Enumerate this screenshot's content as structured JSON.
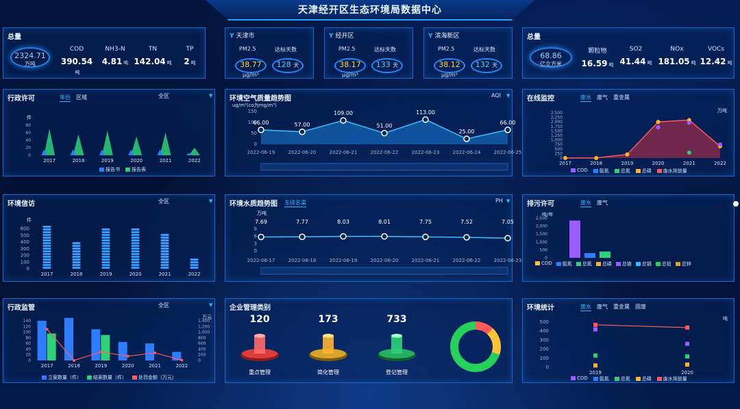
{
  "title": "天津经开区生态环境局数据中心",
  "totals_left": {
    "label": "总量",
    "value": "2324.71",
    "unit": "万吨",
    "items": [
      {
        "label": "COD",
        "value": "390.54",
        "unit": "吨"
      },
      {
        "label": "NH3-N",
        "value": "4.81",
        "unit": "吨"
      },
      {
        "label": "TN",
        "value": "142.04",
        "unit": "吨"
      },
      {
        "label": "TP",
        "value": "2",
        "unit": "吨"
      }
    ]
  },
  "cities": [
    {
      "name": "天津市",
      "pm_label": "PM2.5",
      "days_label": "达标天数",
      "pm": "38.77",
      "days": "128",
      "days_unit": "天",
      "unit": "μg/m³"
    },
    {
      "name": "经开区",
      "pm_label": "PM2.5",
      "days_label": "达标天数",
      "pm": "38.17",
      "days": "133",
      "days_unit": "天",
      "unit": "μg/m³"
    },
    {
      "name": "滨海新区",
      "pm_label": "PM2.5",
      "days_label": "达标天数",
      "pm": "38.12",
      "days": "132",
      "days_unit": "天",
      "unit": "μg/m³"
    }
  ],
  "totals_right": {
    "label": "总量",
    "value": "68.86",
    "unit": "亿立方米",
    "items": [
      {
        "label": "颗粒物",
        "value": "16.59",
        "unit": "吨"
      },
      {
        "label": "SO2",
        "value": "41.44",
        "unit": "吨"
      },
      {
        "label": "NOx",
        "value": "181.05",
        "unit": "吨"
      },
      {
        "label": "VOCs",
        "value": "12.42",
        "unit": "吨"
      }
    ]
  },
  "panels": {
    "admin_permit": {
      "title": "行政许可",
      "tabs": [
        "年份",
        "区域"
      ],
      "dropdown": "全区",
      "unit": "件",
      "legend": [
        "报告书",
        "报告表"
      ]
    },
    "air_trend": {
      "title": "环境空气质量趋势图",
      "unit": "ug/m³(co为mg/m³)",
      "dropdown": "AQI"
    },
    "online_monitor": {
      "title": "在线监控",
      "tabs": [
        "废水",
        "废气",
        "重金属"
      ],
      "unit": "万吨",
      "legend": [
        "COD",
        "氨氮",
        "总氮",
        "总磷",
        "废水排放量"
      ]
    },
    "complaints": {
      "title": "环境信访",
      "dropdown": "全区",
      "unit": "件"
    },
    "water_trend": {
      "title": "环境水质趋势图",
      "tab": "东排名渠",
      "dropdown": "PH",
      "unit": "万吨"
    },
    "discharge_permit": {
      "title": "排污许可",
      "tabs": [
        "废水",
        "废气"
      ],
      "unit": "吨/年",
      "legend": [
        "COD",
        "氨氮",
        "总氮",
        "总磷",
        "总铬",
        "总镉",
        "总铅",
        "总锌"
      ]
    },
    "admin_supervision": {
      "title": "行政监管",
      "dropdown": "全区",
      "unit_right": "万元",
      "legend": [
        "立案数量（件）",
        "结案数量（件）",
        "处罚金额（万元）"
      ]
    },
    "enterprise": {
      "title": "企业管理类别",
      "items": [
        {
          "label": "重点管理",
          "count": "120"
        },
        {
          "label": "简化管理",
          "count": "173"
        },
        {
          "label": "登记管理",
          "count": "733"
        }
      ]
    },
    "env_stats": {
      "title": "环境统计",
      "tabs": [
        "废水",
        "废气",
        "重金属",
        "固废"
      ],
      "unit": "吨",
      "legend": [
        "COD",
        "氨氮",
        "总氮",
        "总磷",
        "废水排放量"
      ]
    }
  },
  "colors": {
    "accent": "#2fb8ff",
    "panel_border": "#1f67c9",
    "bg": "#021032"
  },
  "chart_data": [
    {
      "type": "area",
      "title": "行政许可",
      "categories": [
        "2017",
        "2018",
        "2019",
        "2020",
        "2021",
        "2022"
      ],
      "series": [
        {
          "name": "报告书",
          "values": [
            5,
            5,
            5,
            5,
            5,
            2
          ]
        },
        {
          "name": "报告表",
          "values": [
            70,
            55,
            65,
            50,
            60,
            20
          ]
        }
      ],
      "ylim": [
        0,
        90
      ]
    },
    {
      "type": "line",
      "title": "环境空气质量趋势图",
      "categories": [
        "2022-06-19",
        "2022-06-20",
        "2022-06-21",
        "2022-06-22",
        "2022-06-23",
        "2022-06-24",
        "2022-06-25"
      ],
      "series": [
        {
          "name": "AQI",
          "values": [
            66.0,
            57.0,
            109.0,
            51.0,
            113.0,
            25.0,
            66.0
          ]
        }
      ],
      "yticks": [
        "0",
        "50",
        "100",
        "150"
      ],
      "ylim": [
        0,
        150
      ]
    },
    {
      "type": "area",
      "title": "在线监控",
      "categories": [
        "2017",
        "2018",
        "2019",
        "2020",
        "2021",
        "2022"
      ],
      "series": [
        {
          "name": "废水排放量",
          "values": [
            0,
            0,
            200,
            2000,
            2100,
            650
          ]
        },
        {
          "name": "COD",
          "values": [
            0,
            0,
            0,
            1700,
            1950,
            750
          ]
        },
        {
          "name": "总氮",
          "values": [
            0,
            0,
            0,
            0,
            300,
            0
          ]
        }
      ],
      "yticks": [
        "0",
        "250",
        "500",
        "750",
        "1,000",
        "1,250",
        "1,500",
        "1,750",
        "2,000",
        "2,250",
        "2,500"
      ],
      "ylim": [
        0,
        2500
      ]
    },
    {
      "type": "bar",
      "title": "环境信访",
      "categories": [
        "2017",
        "2018",
        "2019",
        "2020",
        "2021",
        "2022"
      ],
      "series": [
        {
          "name": "",
          "values": [
            700,
            430,
            640,
            660,
            580,
            170
          ]
        }
      ],
      "yticks": [
        "0",
        "100",
        "200",
        "300",
        "400",
        "500",
        "600"
      ],
      "ylim": [
        0,
        750
      ]
    },
    {
      "type": "line",
      "title": "环境水质趋势图",
      "categories": [
        "2022-06-17",
        "2022-06-18",
        "2022-06-19",
        "2022-06-20",
        "2022-06-21",
        "2022-06-22",
        "2022-06-23"
      ],
      "series": [
        {
          "name": "PH",
          "values": [
            7.69,
            7.77,
            8.03,
            8.01,
            7.75,
            7.52,
            7.05
          ]
        }
      ],
      "yticks": [
        "0",
        "3",
        "6",
        "9"
      ],
      "ylim": [
        0,
        12
      ]
    },
    {
      "type": "bar",
      "title": "排污许可",
      "categories": [
        "COD",
        "氨氮",
        "总氮"
      ],
      "series": [
        {
          "name": "",
          "values": [
            2350,
            300,
            400
          ]
        }
      ],
      "yticks": [
        "0",
        "500",
        "1,000",
        "1,500",
        "2,000",
        "2,500"
      ],
      "ylim": [
        0,
        2500
      ]
    },
    {
      "type": "bar",
      "title": "行政监管",
      "categories": [
        "2017",
        "2018",
        "2019",
        "2020",
        "2021",
        "2022"
      ],
      "series": [
        {
          "name": "立案数量（件）",
          "values": [
            140,
            150,
            110,
            65,
            60,
            30
          ]
        },
        {
          "name": "结案数量（件）",
          "values": [
            95,
            0,
            90,
            0,
            0,
            0
          ]
        },
        {
          "name": "处罚金额（万元）",
          "values": [
            1100,
            0,
            300,
            150,
            270,
            10
          ]
        }
      ],
      "yticks_left": [
        "0",
        "20",
        "40",
        "60",
        "80",
        "100",
        "120",
        "140"
      ],
      "yticks_right": [
        "0",
        "200",
        "400",
        "600",
        "800",
        "1,000",
        "1,200",
        "1,400"
      ]
    },
    {
      "type": "scatter",
      "title": "环境统计",
      "categories": [
        "2019",
        "2020"
      ],
      "series": [
        {
          "name": "废水排放量",
          "values": [
            470,
            440
          ]
        },
        {
          "name": "COD",
          "values": [
            420,
            260
          ]
        },
        {
          "name": "总氮",
          "values": [
            130,
            120
          ]
        },
        {
          "name": "总磷",
          "values": [
            20,
            30
          ]
        }
      ],
      "yticks": [
        "0",
        "100",
        "200",
        "300",
        "400",
        "500"
      ],
      "ylim": [
        0,
        500
      ]
    }
  ]
}
